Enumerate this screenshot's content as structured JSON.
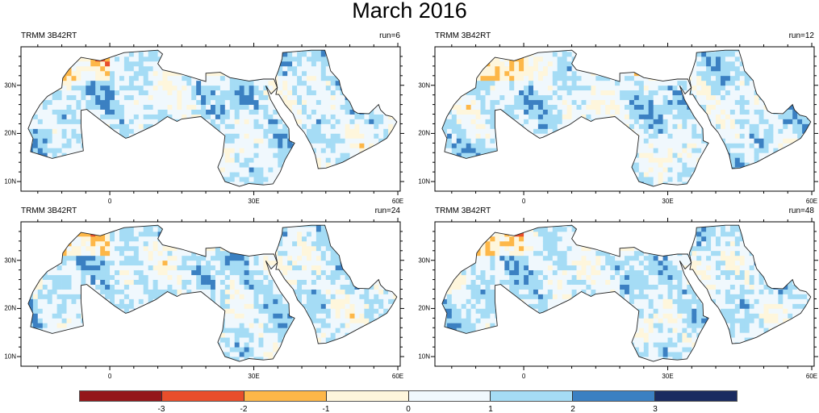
{
  "title": "March 2016",
  "panels": [
    {
      "source": "TRMM 3B42RT",
      "run": "run=6",
      "seed": 6
    },
    {
      "source": "TRMM 3B42RT",
      "run": "run=12",
      "seed": 12
    },
    {
      "source": "TRMM 3B42RT",
      "run": "run=24",
      "seed": 24
    },
    {
      "source": "TRMM 3B42RT",
      "run": "run=48",
      "seed": 48
    }
  ],
  "lon_ticks": [
    {
      "value": 0,
      "label": "0"
    },
    {
      "value": 30,
      "label": "30E"
    },
    {
      "value": 60,
      "label": "60E"
    }
  ],
  "lat_ticks": [
    {
      "value": 30,
      "label": "30N"
    },
    {
      "value": 20,
      "label": "20N"
    },
    {
      "value": 10,
      "label": "10N"
    }
  ],
  "colorbar": {
    "colors": [
      "#94171b",
      "#e84e2b",
      "#fdb748",
      "#fef6dc",
      "#f0f8fd",
      "#a5dcf5",
      "#3b80c2",
      "#1a2b60"
    ],
    "labels": [
      "-3",
      "-2",
      "-1",
      "0",
      "1",
      "2",
      "3"
    ]
  }
}
